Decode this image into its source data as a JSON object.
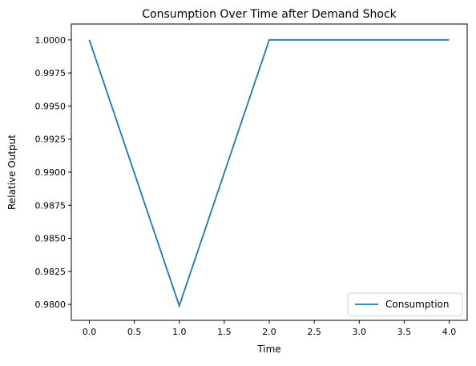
{
  "chart_data": {
    "type": "line",
    "title": "Consumption Over Time after Demand Shock",
    "xlabel": "Time",
    "ylabel": "Relative Output",
    "xlim": [
      -0.2,
      4.2
    ],
    "ylim": [
      0.9788,
      1.0012
    ],
    "x_ticks": [
      0.0,
      0.5,
      1.0,
      1.5,
      2.0,
      2.5,
      3.0,
      3.5,
      4.0
    ],
    "x_tick_labels": [
      "0.0",
      "0.5",
      "1.0",
      "1.5",
      "2.0",
      "2.5",
      "3.0",
      "3.5",
      "4.0"
    ],
    "y_ticks": [
      0.98,
      0.9825,
      0.985,
      0.9875,
      0.99,
      0.9925,
      0.995,
      0.9975,
      1.0
    ],
    "y_tick_labels": [
      "0.9800",
      "0.9825",
      "0.9850",
      "0.9875",
      "0.9900",
      "0.9925",
      "0.9950",
      "0.9975",
      "1.0000"
    ],
    "grid": false,
    "legend_position": "lower-right",
    "series": [
      {
        "name": "Consumption",
        "color": "#1f77b4",
        "x": [
          0,
          1,
          2,
          3,
          4
        ],
        "y": [
          1.0,
          0.9799,
          1.0,
          1.0,
          1.0
        ]
      }
    ]
  }
}
